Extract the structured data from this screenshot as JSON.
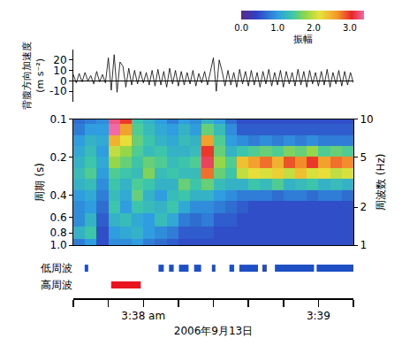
{
  "chart_data": [
    {
      "type": "line",
      "ylabel": "背腹方向加速度 (m s⁻²)",
      "color": "#000000",
      "xlim": [
        -24,
        72
      ],
      "ylim": [
        -20,
        30
      ],
      "yticks": [
        -10,
        0,
        10,
        20
      ],
      "x": [
        -24,
        -23,
        -22,
        -21,
        -20,
        -19,
        -18,
        -17,
        -16,
        -15,
        -14,
        -13,
        -12,
        -11,
        -10,
        -9,
        -8,
        -7,
        -6,
        -5,
        -4,
        -3,
        -2,
        -1,
        0,
        1,
        2,
        3,
        4,
        5,
        6,
        7,
        8,
        9,
        10,
        11,
        12,
        13,
        14,
        15,
        16,
        17,
        18,
        19,
        20,
        21,
        22,
        23,
        24,
        25,
        26,
        27,
        28,
        29,
        30,
        31,
        32,
        33,
        34,
        35,
        36,
        37,
        38,
        39,
        40,
        41,
        42,
        43,
        44,
        45,
        46,
        47,
        48,
        49,
        50,
        51,
        52,
        53,
        54,
        55,
        56,
        57,
        58,
        59,
        60,
        61,
        62,
        63,
        64,
        65,
        66,
        67,
        68,
        69,
        70,
        71,
        72
      ],
      "values": [
        6,
        -2,
        7,
        -1,
        8,
        0,
        5,
        -3,
        9,
        -1,
        6,
        -2,
        22,
        -9,
        25,
        -11,
        18,
        14,
        -6,
        12,
        -4,
        10,
        -3,
        9,
        -2,
        8,
        -4,
        10,
        -5,
        11,
        -4,
        9,
        -6,
        12,
        -3,
        10,
        -5,
        9,
        -4,
        8,
        -3,
        10,
        -5,
        7,
        -2,
        9,
        -4,
        8,
        22,
        -10,
        20,
        9,
        -5,
        10,
        -4,
        8,
        -6,
        11,
        -3,
        9,
        -5,
        10,
        -4,
        8,
        -6,
        9,
        -3,
        11,
        -5,
        8,
        -4,
        10,
        -6,
        9,
        -3,
        8,
        -5,
        11,
        -4,
        9,
        -6,
        10,
        -3,
        8,
        -5,
        9,
        -4,
        11,
        -6,
        8,
        -3,
        10,
        -5,
        9,
        -4,
        8,
        -2
      ]
    },
    {
      "type": "heatmap",
      "ylabel": "周期 (s)",
      "y2label": "周波数 (Hz)",
      "log": "y",
      "xlim": [
        -24,
        72
      ],
      "ylim": [
        1,
        0.1
      ],
      "yticks": [
        0.1,
        0.2,
        0.4,
        0.6,
        0.8,
        {
          "value": 1,
          "label": "1.0"
        }
      ],
      "y2lim": [
        1,
        10
      ],
      "y2ticks": [
        1,
        2,
        5,
        10
      ],
      "colorbar_title": "振幅",
      "zlim": [
        0,
        3.4
      ],
      "zticks": [
        {
          "value": 0,
          "label": "0.0"
        },
        {
          "value": 1,
          "label": "1.0"
        },
        {
          "value": 2,
          "label": "2.0"
        },
        {
          "value": 3,
          "label": "3.0"
        }
      ],
      "x": [
        -22,
        -18,
        -14,
        -10,
        -6,
        -2,
        2,
        6,
        10,
        14,
        18,
        22,
        26,
        30,
        34,
        38,
        42,
        46,
        50,
        54,
        58,
        62,
        66,
        70
      ],
      "y": [
        0.1,
        0.12,
        0.15,
        0.18,
        0.22,
        0.27,
        0.33,
        0.4,
        0.5,
        0.63,
        0.8,
        1.0
      ],
      "z": [
        [
          0.7,
          0.8,
          0.9,
          3.3,
          3.0,
          1.4,
          1.2,
          1.0,
          0.8,
          1.0,
          0.9,
          1.2,
          1.0,
          0.7,
          0.5,
          0.5,
          0.5,
          0.5,
          0.5,
          0.5,
          0.5,
          0.5,
          0.5,
          0.5
        ],
        [
          0.8,
          1.0,
          1.0,
          3.4,
          2.6,
          1.5,
          1.3,
          1.1,
          1.0,
          1.2,
          1.0,
          1.6,
          1.3,
          0.9,
          0.6,
          0.6,
          0.6,
          0.6,
          0.6,
          0.6,
          0.6,
          0.6,
          0.6,
          0.6
        ],
        [
          1.0,
          1.2,
          1.1,
          2.5,
          2.2,
          1.6,
          1.4,
          1.2,
          1.1,
          1.3,
          1.2,
          2.6,
          1.5,
          1.0,
          0.9,
          0.8,
          0.9,
          0.8,
          0.9,
          0.8,
          0.9,
          0.8,
          0.8,
          0.8
        ],
        [
          1.1,
          1.3,
          1.0,
          2.0,
          1.8,
          1.5,
          1.3,
          1.4,
          1.2,
          1.2,
          1.3,
          3.0,
          1.6,
          1.2,
          1.4,
          1.5,
          1.6,
          1.5,
          1.7,
          1.6,
          1.8,
          1.5,
          1.6,
          1.5
        ],
        [
          1.2,
          1.4,
          1.1,
          1.8,
          1.6,
          1.4,
          1.6,
          1.5,
          1.3,
          1.4,
          1.5,
          3.2,
          1.8,
          1.5,
          2.4,
          2.6,
          2.8,
          2.5,
          2.9,
          2.7,
          3.0,
          2.6,
          2.8,
          2.7
        ],
        [
          1.3,
          1.5,
          1.0,
          1.5,
          1.4,
          1.3,
          1.7,
          1.3,
          1.4,
          1.3,
          1.3,
          2.8,
          1.6,
          1.4,
          2.0,
          2.2,
          2.1,
          2.3,
          2.0,
          2.4,
          2.1,
          2.2,
          2.0,
          2.1
        ],
        [
          1.2,
          1.3,
          0.9,
          1.4,
          1.2,
          1.5,
          1.4,
          1.2,
          1.2,
          1.6,
          1.4,
          1.6,
          1.3,
          1.2,
          1.2,
          1.4,
          1.3,
          1.5,
          1.2,
          1.3,
          1.4,
          1.2,
          1.3,
          1.2
        ],
        [
          1.0,
          1.1,
          0.8,
          1.3,
          1.1,
          1.6,
          1.2,
          1.0,
          1.3,
          1.4,
          1.2,
          1.2,
          1.0,
          0.9,
          0.8,
          0.8,
          0.8,
          0.7,
          0.8,
          0.8,
          0.7,
          0.8,
          0.8,
          0.7
        ],
        [
          0.9,
          1.0,
          0.7,
          1.4,
          1.0,
          1.4,
          1.3,
          1.2,
          1.4,
          1.1,
          0.9,
          0.9,
          0.8,
          0.7,
          0.6,
          0.5,
          0.5,
          0.5,
          0.5,
          0.5,
          0.5,
          0.5,
          0.5,
          0.5
        ],
        [
          0.9,
          1.2,
          0.6,
          1.2,
          1.3,
          1.1,
          1.0,
          1.3,
          1.1,
          0.8,
          0.7,
          0.8,
          0.6,
          0.6,
          0.5,
          0.5,
          0.5,
          0.5,
          0.5,
          0.5,
          0.5,
          0.5,
          0.5,
          0.5
        ],
        [
          1.2,
          1.4,
          0.5,
          1.0,
          1.1,
          1.2,
          1.0,
          0.9,
          0.8,
          0.6,
          0.6,
          0.6,
          0.5,
          0.5,
          0.5,
          0.5,
          0.5,
          0.5,
          0.5,
          0.5,
          0.5,
          0.5,
          0.5,
          0.5
        ],
        [
          0.8,
          1.0,
          0.5,
          0.9,
          0.9,
          1.0,
          0.8,
          0.7,
          0.6,
          0.5,
          0.5,
          0.5,
          0.5,
          0.5,
          0.5,
          0.5,
          0.5,
          0.5,
          0.5,
          0.5,
          0.5,
          0.5,
          0.5,
          0.5
        ]
      ]
    },
    {
      "type": "timeline",
      "xlabel": "2006年9月13日",
      "xlim": [
        -24,
        72
      ],
      "xticks": [
        {
          "value": 0,
          "label": "3:38 am"
        },
        {
          "value": 60,
          "label": "3:39"
        }
      ],
      "x_minor_ticks": [
        -24,
        -12,
        12,
        24,
        36,
        48,
        72
      ],
      "categories": [
        "低周波",
        "高周波"
      ],
      "series": [
        {
          "name": "低周波",
          "color": "#1f4fc4",
          "segments": [
            [
              -20.1,
              -18.9
            ],
            [
              5.2,
              7.0
            ],
            [
              8.8,
              10.4
            ],
            [
              12.2,
              15.5
            ],
            [
              17.4,
              19.8
            ],
            [
              23.5,
              24.7
            ],
            [
              29.5,
              31.1
            ],
            [
              32.9,
              39.3
            ],
            [
              40.8,
              42.3
            ],
            [
              45.1,
              58.5
            ],
            [
              59.4,
              72
            ]
          ]
        },
        {
          "name": "高周波",
          "color": "#e8141e",
          "segments": [
            [
              -11,
              -0.9
            ]
          ]
        }
      ]
    }
  ]
}
